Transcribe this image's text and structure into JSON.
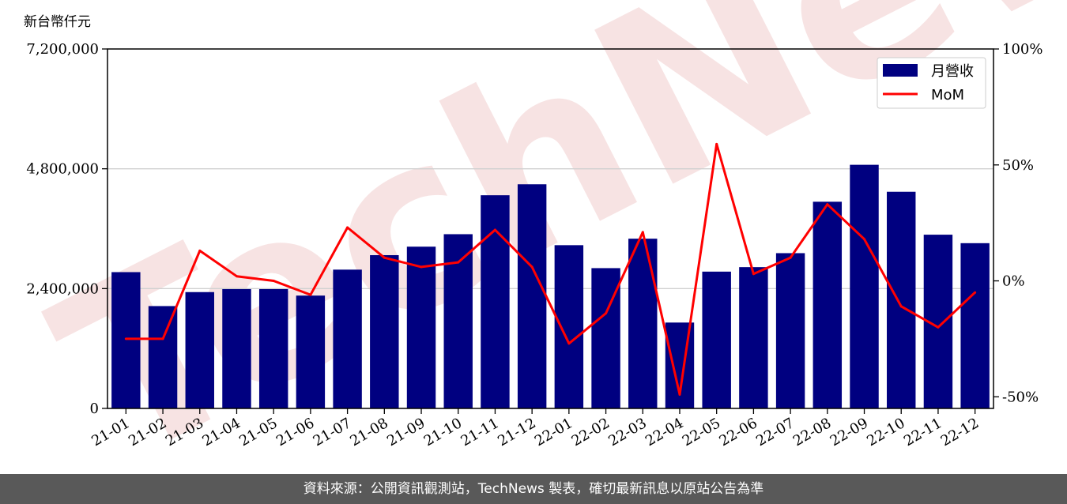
{
  "unit_label": "新台幣仟元",
  "watermark": "TechNews",
  "footer": "資料來源：公開資訊觀測站，TechNews 製表，確切最新訊息以原站公告為準",
  "colors": {
    "bar": "#000080",
    "line": "#ff0000",
    "grid": "#d0d0d0",
    "watermark": "#f7e3e3"
  },
  "chart_data": {
    "type": "bar",
    "categories": [
      "21-01",
      "21-02",
      "21-03",
      "21-04",
      "21-05",
      "21-06",
      "21-07",
      "21-08",
      "21-09",
      "21-10",
      "21-11",
      "21-12",
      "22-01",
      "22-02",
      "22-03",
      "22-04",
      "22-05",
      "22-06",
      "22-07",
      "22-08",
      "22-09",
      "22-10",
      "22-11",
      "22-12"
    ],
    "series": [
      {
        "name": "月營收",
        "type": "bar",
        "axis": "left",
        "values": [
          2730000,
          2050000,
          2330000,
          2390000,
          2390000,
          2260000,
          2780000,
          3070000,
          3240000,
          3490000,
          4270000,
          4490000,
          3270000,
          2810000,
          3400000,
          1720000,
          2740000,
          2830000,
          3110000,
          4140000,
          4880000,
          4340000,
          3480000,
          3310000
        ]
      },
      {
        "name": "MoM",
        "type": "line",
        "axis": "right",
        "values": [
          -25,
          -25,
          13,
          2,
          0,
          -6,
          23,
          10,
          6,
          8,
          22,
          6,
          -27,
          -14,
          21,
          -49,
          59,
          3,
          10,
          33,
          18,
          -11,
          -20,
          -5
        ]
      }
    ],
    "y_left": {
      "ylim": [
        0,
        7200000
      ],
      "ticks": [
        0,
        2400000,
        4800000,
        7200000
      ],
      "tick_labels": [
        "0",
        "2,400,000",
        "4,800,000",
        "7,200,000"
      ]
    },
    "y_right": {
      "ylim": [
        -55,
        100
      ],
      "ticks": [
        -50,
        0,
        50,
        100
      ],
      "tick_labels": [
        "-50%",
        "0%",
        "50%",
        "100%"
      ]
    },
    "grid": "horizontal",
    "legend": {
      "position": "top-right",
      "entries": [
        "月營收",
        "MoM"
      ]
    }
  }
}
